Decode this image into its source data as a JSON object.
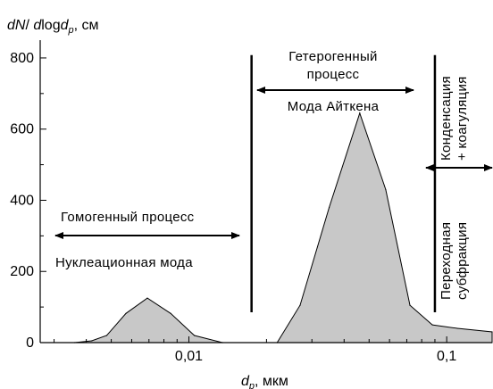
{
  "chart_data": {
    "type": "area",
    "ylabel": "dN/ dlogd_p, см",
    "xlabel": "d_p, мкм",
    "x_scale": "log",
    "xlim": [
      0.00265,
      0.15
    ],
    "ylim": [
      0,
      850
    ],
    "x_ticks": [
      {
        "value": 0.01,
        "label": "0,01"
      },
      {
        "value": 0.1,
        "label": "0,1"
      }
    ],
    "y_ticks": [
      {
        "value": 0,
        "label": "0"
      },
      {
        "value": 200,
        "label": "200"
      },
      {
        "value": 400,
        "label": "400"
      },
      {
        "value": 600,
        "label": "600"
      },
      {
        "value": 800,
        "label": "800"
      }
    ],
    "grid": false,
    "fill_color": "#c8c8c8",
    "series": [
      {
        "x": [
          0.0036,
          0.0042,
          0.0048,
          0.0057,
          0.0069,
          0.0085,
          0.0105,
          0.0135
        ],
        "y": [
          0,
          5,
          20,
          82,
          125,
          82,
          20,
          0
        ]
      },
      {
        "x": [
          0.022,
          0.027,
          0.035,
          0.046,
          0.058,
          0.072,
          0.088,
          0.11,
          0.15
        ],
        "y": [
          0,
          105,
          380,
          645,
          430,
          105,
          50,
          40,
          30
        ]
      }
    ],
    "dividers_x": [
      0.0175,
      0.09
    ],
    "annotations": {
      "homogeneous_process": "Гомогенный процесс",
      "nucleation_mode": "Нуклеационная мода",
      "heterogeneous_process_line1": "Гетерогенный",
      "heterogeneous_process_line2": "процесс",
      "aitken_mode": "Мода Айткена",
      "condensation_line1": "Конденсация",
      "condensation_line2": "+ коагуляция",
      "transitional_line1": "Переходная",
      "transitional_line2": "субфракция"
    }
  }
}
